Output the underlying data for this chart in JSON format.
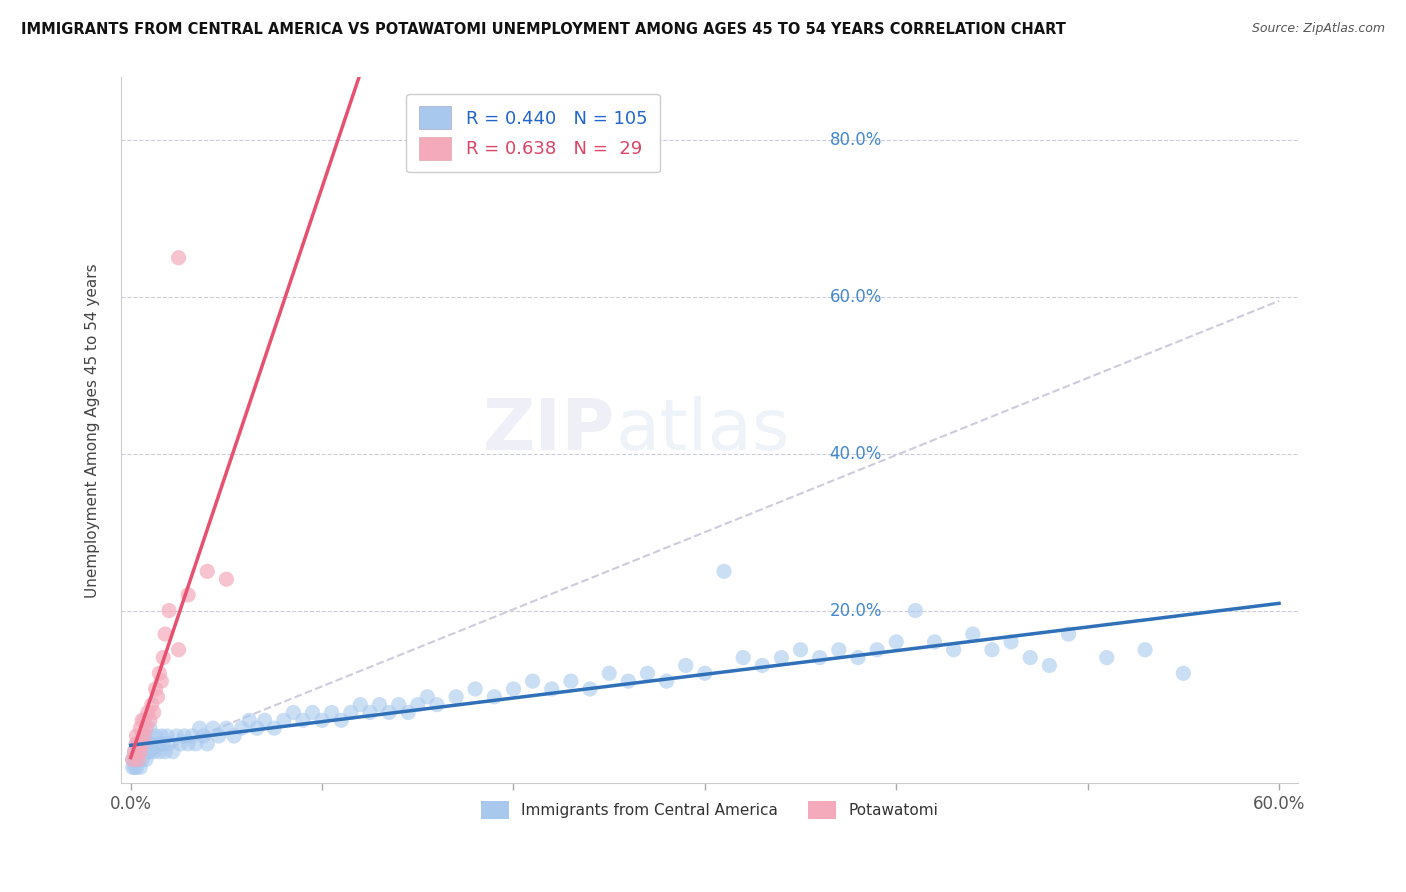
{
  "title": "IMMIGRANTS FROM CENTRAL AMERICA VS POTAWATOMI UNEMPLOYMENT AMONG AGES 45 TO 54 YEARS CORRELATION CHART",
  "source": "Source: ZipAtlas.com",
  "ylabel": "Unemployment Among Ages 45 to 54 years",
  "xlim": [
    -0.005,
    0.61
  ],
  "ylim": [
    -0.02,
    0.88
  ],
  "blue_R": 0.44,
  "blue_N": 105,
  "pink_R": 0.638,
  "pink_N": 29,
  "blue_color": "#A8C8EE",
  "pink_color": "#F4AABB",
  "blue_line_color": "#3070B8",
  "pink_line_color": "#E85070",
  "dash_color": "#CCCCDD",
  "legend_label_blue": "Immigrants from Central America",
  "legend_label_pink": "Potawatomi",
  "watermark_text": "ZIPatlas",
  "blue_x": [
    0.001,
    0.002,
    0.002,
    0.003,
    0.003,
    0.004,
    0.004,
    0.005,
    0.005,
    0.006,
    0.006,
    0.007,
    0.007,
    0.008,
    0.008,
    0.009,
    0.009,
    0.01,
    0.01,
    0.011,
    0.012,
    0.013,
    0.014,
    0.015,
    0.016,
    0.017,
    0.018,
    0.019,
    0.02,
    0.022,
    0.024,
    0.026,
    0.028,
    0.03,
    0.032,
    0.034,
    0.036,
    0.038,
    0.04,
    0.043,
    0.046,
    0.05,
    0.054,
    0.058,
    0.062,
    0.066,
    0.07,
    0.075,
    0.08,
    0.085,
    0.09,
    0.095,
    0.1,
    0.105,
    0.11,
    0.115,
    0.12,
    0.125,
    0.13,
    0.135,
    0.14,
    0.145,
    0.15,
    0.155,
    0.16,
    0.17,
    0.18,
    0.19,
    0.2,
    0.21,
    0.22,
    0.23,
    0.24,
    0.25,
    0.26,
    0.27,
    0.28,
    0.29,
    0.3,
    0.31,
    0.32,
    0.33,
    0.34,
    0.35,
    0.36,
    0.37,
    0.38,
    0.39,
    0.4,
    0.41,
    0.42,
    0.43,
    0.44,
    0.45,
    0.46,
    0.47,
    0.48,
    0.49,
    0.51,
    0.53,
    0.55,
    0.001,
    0.002,
    0.003,
    0.005
  ],
  "blue_y": [
    0.01,
    0.02,
    0.01,
    0.03,
    0.01,
    0.02,
    0.03,
    0.02,
    0.03,
    0.01,
    0.04,
    0.02,
    0.03,
    0.01,
    0.04,
    0.02,
    0.03,
    0.05,
    0.02,
    0.03,
    0.02,
    0.04,
    0.03,
    0.02,
    0.04,
    0.03,
    0.02,
    0.04,
    0.03,
    0.02,
    0.04,
    0.03,
    0.04,
    0.03,
    0.04,
    0.03,
    0.05,
    0.04,
    0.03,
    0.05,
    0.04,
    0.05,
    0.04,
    0.05,
    0.06,
    0.05,
    0.06,
    0.05,
    0.06,
    0.07,
    0.06,
    0.07,
    0.06,
    0.07,
    0.06,
    0.07,
    0.08,
    0.07,
    0.08,
    0.07,
    0.08,
    0.07,
    0.08,
    0.09,
    0.08,
    0.09,
    0.1,
    0.09,
    0.1,
    0.11,
    0.1,
    0.11,
    0.1,
    0.12,
    0.11,
    0.12,
    0.11,
    0.13,
    0.12,
    0.25,
    0.14,
    0.13,
    0.14,
    0.15,
    0.14,
    0.15,
    0.14,
    0.15,
    0.16,
    0.2,
    0.16,
    0.15,
    0.17,
    0.15,
    0.16,
    0.14,
    0.13,
    0.17,
    0.14,
    0.15,
    0.12,
    0.0,
    0.0,
    0.0,
    0.0
  ],
  "pink_x": [
    0.001,
    0.002,
    0.003,
    0.003,
    0.004,
    0.004,
    0.005,
    0.005,
    0.006,
    0.006,
    0.007,
    0.007,
    0.008,
    0.009,
    0.01,
    0.011,
    0.012,
    0.013,
    0.014,
    0.015,
    0.016,
    0.017,
    0.018,
    0.02,
    0.025,
    0.025,
    0.03,
    0.04,
    0.05
  ],
  "pink_y": [
    0.01,
    0.02,
    0.03,
    0.04,
    0.01,
    0.03,
    0.02,
    0.05,
    0.03,
    0.06,
    0.04,
    0.06,
    0.05,
    0.07,
    0.06,
    0.08,
    0.07,
    0.1,
    0.09,
    0.12,
    0.11,
    0.14,
    0.17,
    0.2,
    0.65,
    0.15,
    0.22,
    0.25,
    0.24
  ],
  "dash_line_x": [
    0.0,
    0.6
  ],
  "dash_line_y": [
    0.005,
    0.595
  ]
}
